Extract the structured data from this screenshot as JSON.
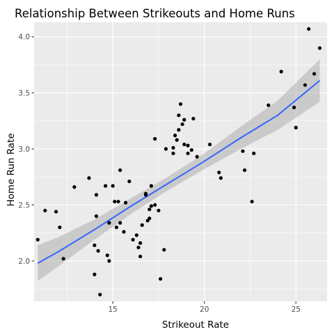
{
  "chart_data": {
    "type": "scatter",
    "title": "Relationship Between Strikeouts and Home Runs",
    "xlabel": "Strikeout Rate",
    "ylabel": "Home Run Rate",
    "xlim": [
      10.7,
      26.7
    ],
    "ylim": [
      1.64,
      4.13
    ],
    "x_ticks": [
      15,
      20,
      25
    ],
    "y_ticks": [
      2.0,
      2.5,
      3.0,
      3.5,
      4.0
    ],
    "x_tick_labels": [
      "15",
      "20",
      "25"
    ],
    "y_tick_labels": [
      "2.0",
      "2.5",
      "3.0",
      "3.5",
      "4.0"
    ],
    "grid": true,
    "legend": "none",
    "points": [
      [
        10.9,
        2.19
      ],
      [
        11.3,
        2.45
      ],
      [
        11.9,
        2.44
      ],
      [
        12.1,
        2.3
      ],
      [
        12.3,
        2.02
      ],
      [
        12.9,
        2.66
      ],
      [
        13.7,
        2.74
      ],
      [
        14.0,
        1.88
      ],
      [
        14.0,
        2.14
      ],
      [
        14.1,
        2.4
      ],
      [
        14.1,
        2.59
      ],
      [
        14.2,
        2.09
      ],
      [
        14.3,
        1.7
      ],
      [
        14.6,
        2.67
      ],
      [
        14.7,
        2.05
      ],
      [
        14.8,
        2.34
      ],
      [
        14.8,
        2.0
      ],
      [
        15.0,
        2.67
      ],
      [
        15.1,
        2.53
      ],
      [
        15.2,
        2.3
      ],
      [
        15.3,
        2.53
      ],
      [
        15.4,
        2.34
      ],
      [
        15.4,
        2.81
      ],
      [
        15.6,
        2.26
      ],
      [
        15.7,
        2.52
      ],
      [
        15.9,
        2.71
      ],
      [
        16.1,
        2.19
      ],
      [
        16.3,
        2.23
      ],
      [
        16.4,
        2.12
      ],
      [
        16.5,
        2.04
      ],
      [
        16.5,
        2.16
      ],
      [
        16.6,
        2.32
      ],
      [
        16.8,
        2.59
      ],
      [
        16.8,
        2.6
      ],
      [
        16.9,
        2.36
      ],
      [
        17.0,
        2.38
      ],
      [
        17.0,
        2.46
      ],
      [
        17.1,
        2.49
      ],
      [
        17.1,
        2.67
      ],
      [
        17.3,
        2.5
      ],
      [
        17.3,
        3.09
      ],
      [
        17.5,
        2.45
      ],
      [
        17.6,
        1.84
      ],
      [
        17.8,
        2.1
      ],
      [
        17.9,
        3.0
      ],
      [
        18.3,
        2.96
      ],
      [
        18.3,
        3.01
      ],
      [
        18.4,
        3.12
      ],
      [
        18.5,
        3.08
      ],
      [
        18.6,
        3.17
      ],
      [
        18.6,
        3.3
      ],
      [
        18.7,
        3.4
      ],
      [
        18.8,
        3.22
      ],
      [
        18.9,
        3.04
      ],
      [
        18.9,
        3.26
      ],
      [
        19.1,
        3.03
      ],
      [
        19.1,
        2.96
      ],
      [
        19.3,
        2.99
      ],
      [
        19.4,
        3.27
      ],
      [
        19.6,
        2.93
      ],
      [
        20.3,
        3.04
      ],
      [
        20.8,
        2.79
      ],
      [
        20.9,
        2.74
      ],
      [
        22.1,
        2.98
      ],
      [
        22.2,
        2.81
      ],
      [
        22.6,
        2.53
      ],
      [
        22.7,
        2.96
      ],
      [
        23.5,
        3.39
      ],
      [
        24.2,
        3.69
      ],
      [
        24.9,
        3.37
      ],
      [
        25.0,
        3.19
      ],
      [
        25.5,
        3.57
      ],
      [
        25.7,
        4.07
      ],
      [
        26.0,
        3.67
      ],
      [
        26.3,
        3.9
      ]
    ],
    "trend": {
      "method": "linear fit with confidence band",
      "x": [
        10.9,
        12.0,
        14.0,
        16.0,
        18.0,
        20.0,
        22.0,
        24.0,
        26.3
      ],
      "fit": [
        1.98,
        2.08,
        2.28,
        2.49,
        2.69,
        2.89,
        3.1,
        3.3,
        3.61
      ],
      "lower": [
        1.82,
        1.95,
        2.19,
        2.42,
        2.63,
        2.82,
        3.0,
        3.17,
        3.42
      ],
      "upper": [
        2.14,
        2.21,
        2.37,
        2.56,
        2.75,
        2.96,
        3.2,
        3.43,
        3.8
      ]
    },
    "colors": {
      "panel_background": "#ebebeb",
      "grid_major": "#ffffff",
      "point": "#000000",
      "trend_line": "#3366ff",
      "confidence_band": "#999999",
      "tick_label": "#4d4d4d",
      "tick_mark": "#333333"
    }
  }
}
